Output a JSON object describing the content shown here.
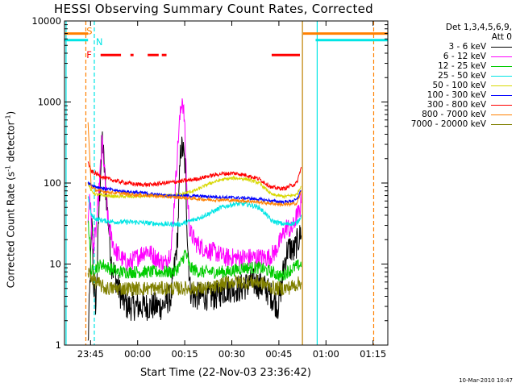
{
  "page": {
    "title": "HESSI Observing Summary Count Rates, Corrected",
    "xlabel": "Start Time (22-Nov-03 23:36:42)",
    "ylabel": "Corrected Count Rate (s",
    "ylabel_sup1": "-1",
    "ylabel_mid": " detector",
    "ylabel_sup2": "-1",
    "ylabel_end": ")",
    "stamp": "10-Mar-2010 10:47",
    "legend_header1": "Det 1,3,4,5,6,9,",
    "legend_header2": "Att 0"
  },
  "chart_data": {
    "type": "line",
    "title": "HESSI Observing Summary Count Rates, Corrected",
    "xlabel": "Start Time (22-Nov-03 23:36:42)",
    "ylabel": "Corrected Count Rate (s^-1 detector^-1)",
    "x_unit": "minutes after 22-Nov-03 23:36:42",
    "xlim": [
      0,
      103
    ],
    "ylim": [
      1,
      10000
    ],
    "yscale": "log",
    "x_ticks": [
      {
        "x": 8.3,
        "label": "23:45"
      },
      {
        "x": 23.3,
        "label": "00:00"
      },
      {
        "x": 38.3,
        "label": "00:15"
      },
      {
        "x": 53.3,
        "label": "00:30"
      },
      {
        "x": 68.3,
        "label": "00:45"
      },
      {
        "x": 83.3,
        "label": "01:00"
      },
      {
        "x": 98.3,
        "label": "01:15"
      }
    ],
    "y_ticks": [
      {
        "y": 1,
        "label": "1"
      },
      {
        "y": 10,
        "label": "10"
      },
      {
        "y": 100,
        "label": "100"
      },
      {
        "y": 1000,
        "label": "1000"
      },
      {
        "y": 10000,
        "label": "10000"
      }
    ],
    "grid": false,
    "legend_position": "right",
    "series": [
      {
        "name": "3 - 6 keV",
        "color": "#000000",
        "x": [
          7.5,
          8.8,
          9.2,
          10,
          11,
          12,
          13,
          15,
          18,
          20,
          22,
          25,
          28,
          31,
          34,
          36,
          37,
          37.8,
          38.5,
          39.2,
          40,
          41,
          44,
          48,
          52,
          56,
          60,
          64,
          66,
          68,
          69,
          70,
          71,
          72,
          73,
          74,
          75,
          75.5
        ],
        "y": [
          1,
          40,
          6,
          3,
          50,
          380,
          100,
          10,
          4,
          3,
          3,
          3,
          3,
          3,
          4,
          20,
          280,
          250,
          150,
          20,
          5,
          4,
          4,
          4,
          5,
          5,
          6,
          5,
          4,
          3,
          5,
          10,
          15,
          16,
          14,
          18,
          22,
          28
        ]
      },
      {
        "name": "6 - 12 keV",
        "color": "#ff00ff",
        "x": [
          7.5,
          8,
          9,
          10,
          11,
          12,
          13,
          14,
          16,
          18,
          20,
          23,
          26,
          29,
          32,
          34,
          35.5,
          36.5,
          37.5,
          38.2,
          39,
          40,
          42,
          45,
          48,
          51,
          54,
          57,
          60,
          63,
          65,
          67,
          69,
          70,
          71,
          72,
          73,
          74,
          75,
          75.5
        ],
        "y": [
          30,
          80,
          15,
          25,
          80,
          330,
          100,
          30,
          15,
          12,
          10,
          12,
          15,
          12,
          10,
          15,
          120,
          500,
          1150,
          600,
          80,
          25,
          18,
          15,
          14,
          12,
          12,
          12,
          12,
          12,
          12,
          14,
          20,
          25,
          30,
          25,
          30,
          40,
          45,
          70
        ]
      },
      {
        "name": "12 - 25 keV",
        "color": "#00cc00",
        "x": [
          7.5,
          8.5,
          10,
          12,
          14,
          17,
          20,
          25,
          30,
          35,
          37,
          38.5,
          40,
          43,
          47,
          52,
          57,
          62,
          66,
          69,
          71,
          73,
          75.5
        ],
        "y": [
          40,
          8,
          9,
          10,
          9,
          8,
          8,
          8,
          8,
          8,
          10,
          14,
          9,
          8,
          8,
          8,
          9,
          9,
          8,
          7,
          8,
          9,
          10
        ]
      },
      {
        "name": "25 - 50 keV",
        "color": "#00e5e5",
        "x": [
          7.5,
          8.5,
          10,
          13,
          17,
          22,
          27,
          32,
          37,
          42,
          46,
          50,
          54,
          58,
          62,
          64,
          66,
          70,
          74,
          75.5
        ],
        "y": [
          70,
          40,
          36,
          34,
          33,
          33,
          32,
          31,
          31,
          36,
          42,
          50,
          55,
          55,
          50,
          42,
          34,
          31,
          32,
          40
        ]
      },
      {
        "name": "50 - 100 keV",
        "color": "#d8d800",
        "x": [
          7.5,
          8.5,
          10,
          13,
          17,
          22,
          27,
          32,
          37,
          42,
          46,
          50,
          54,
          58,
          62,
          64,
          66,
          70,
          74,
          75.5
        ],
        "y": [
          100,
          80,
          72,
          70,
          68,
          68,
          69,
          70,
          72,
          82,
          98,
          110,
          115,
          112,
          100,
          85,
          72,
          68,
          72,
          95
        ]
      },
      {
        "name": "100 - 300 keV",
        "color": "#0000ff",
        "x": [
          7.5,
          8.5,
          10,
          13,
          17,
          22,
          27,
          32,
          37,
          42,
          46,
          50,
          54,
          58,
          62,
          66,
          70,
          74,
          75.5
        ],
        "y": [
          100,
          95,
          90,
          85,
          80,
          77,
          74,
          70,
          70,
          69,
          68,
          67,
          66,
          65,
          63,
          60,
          58,
          62,
          85
        ]
      },
      {
        "name": "300 - 800 keV",
        "color": "#ff0000",
        "x": [
          7.5,
          8.5,
          10,
          13,
          17,
          22,
          27,
          32,
          37,
          42,
          46,
          50,
          54,
          58,
          62,
          64,
          66,
          70,
          74,
          75.5
        ],
        "y": [
          180,
          140,
          130,
          115,
          105,
          97,
          95,
          100,
          105,
          112,
          122,
          130,
          132,
          125,
          112,
          100,
          88,
          85,
          100,
          160
        ]
      },
      {
        "name": "800 - 7000 keV",
        "color": "#ff8000",
        "x": [
          7.5,
          8.5,
          10,
          13,
          17,
          22,
          27,
          32,
          37,
          42,
          46,
          50,
          54,
          58,
          62,
          66,
          70,
          74,
          75.5
        ],
        "y": [
          550,
          90,
          82,
          78,
          75,
          72,
          70,
          68,
          66,
          64,
          62,
          62,
          61,
          60,
          58,
          56,
          54,
          56,
          80
        ]
      },
      {
        "name": "7000 - 20000 keV",
        "color": "#808000",
        "x": [
          7.5,
          8.5,
          10,
          13,
          17,
          22,
          27,
          32,
          37,
          42,
          47,
          52,
          57,
          62,
          67,
          71,
          75.5
        ],
        "y": [
          8,
          7,
          6,
          5,
          5,
          5,
          5,
          5,
          5,
          5,
          5,
          6,
          6,
          6,
          5,
          5,
          6
        ]
      }
    ],
    "bars": [
      {
        "label": "S",
        "color": "#ff8000",
        "y": 7000,
        "intervals": [
          [
            0,
            7.5
          ],
          [
            76,
            103
          ]
        ]
      },
      {
        "label": "N",
        "color": "#00e5e5",
        "y": 5800,
        "intervals": [
          [
            0,
            7.5
          ],
          [
            80,
            103
          ]
        ]
      },
      {
        "label": "F",
        "color": "#ff0000",
        "y": 3800,
        "intervals": [
          [
            11.5,
            18
          ],
          [
            21,
            22
          ],
          [
            26.5,
            30
          ],
          [
            31,
            32.5
          ],
          [
            66,
            75
          ]
        ]
      }
    ],
    "vlines": [
      {
        "x": 0.5,
        "color": "#00e5e5",
        "style": "solid"
      },
      {
        "x": 6.8,
        "color": "#ff8000",
        "style": "dashed"
      },
      {
        "x": 9.5,
        "color": "#00e5e5",
        "style": "dashed"
      },
      {
        "x": 75.8,
        "color": "#c08000",
        "style": "solid"
      },
      {
        "x": 80.5,
        "color": "#00e5e5",
        "style": "solid"
      },
      {
        "x": 98.5,
        "color": "#ff8000",
        "style": "dashed"
      }
    ],
    "annotations": [
      "S",
      "N",
      "F"
    ]
  }
}
